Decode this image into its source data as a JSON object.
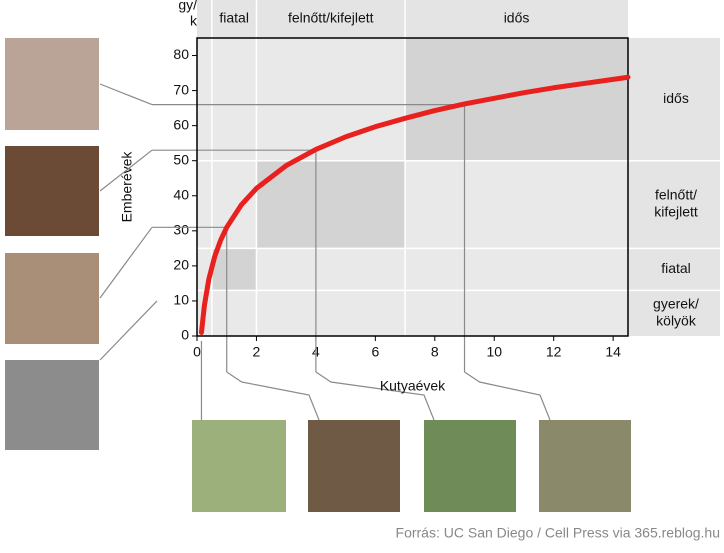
{
  "chart_data": {
    "type": "line",
    "x_label": "Kutyaévek",
    "y_label": "Emberévek",
    "source": "Forrás:  UC San Diego / Cell Press via 365.reblog.hu",
    "x": [
      0.15,
      0.25,
      0.4,
      0.6,
      0.8,
      1,
      1.5,
      2,
      3,
      4,
      5,
      6,
      7,
      8,
      9,
      10,
      11,
      12,
      13,
      14,
      14.5
    ],
    "series": [
      {
        "color": "#e8201e",
        "values": [
          1,
          8.8,
          16.3,
          22.8,
          27.4,
          31,
          37.5,
          42.1,
          48.6,
          53.2,
          56.8,
          59.7,
          62.1,
          64.3,
          66.2,
          67.8,
          69.4,
          70.8,
          72.0,
          73.2,
          73.8
        ]
      }
    ],
    "xlim": [
      0,
      14.5
    ],
    "ylim": [
      0,
      85
    ],
    "xticks": [
      0,
      2,
      4,
      6,
      8,
      10,
      12,
      14
    ],
    "yticks": [
      0,
      10,
      20,
      30,
      40,
      50,
      60,
      70,
      80
    ],
    "top_bands": [
      {
        "label": [
          "gy/",
          "k"
        ],
        "x": [
          0,
          0.5
        ]
      },
      {
        "label": [
          "fiatal"
        ],
        "x": [
          0.5,
          2
        ]
      },
      {
        "label": [
          "felnőtt/kifejlett"
        ],
        "x": [
          2,
          7
        ]
      },
      {
        "label": [
          "idős"
        ],
        "x": [
          7,
          14.5
        ]
      }
    ],
    "side_bands": [
      {
        "label": [
          "gyerek/",
          "kölyök"
        ],
        "y": [
          0,
          13
        ]
      },
      {
        "label": [
          "fiatal"
        ],
        "y": [
          13,
          25
        ]
      },
      {
        "label": [
          "felnőtt/",
          "kifejlett"
        ],
        "y": [
          25,
          50
        ]
      },
      {
        "label": [
          "idős"
        ],
        "y": [
          50,
          85
        ]
      }
    ],
    "guides": [
      {
        "x": 1,
        "y": 31
      },
      {
        "x": 4,
        "y": 53
      },
      {
        "x": 9,
        "y": 66
      }
    ]
  }
}
